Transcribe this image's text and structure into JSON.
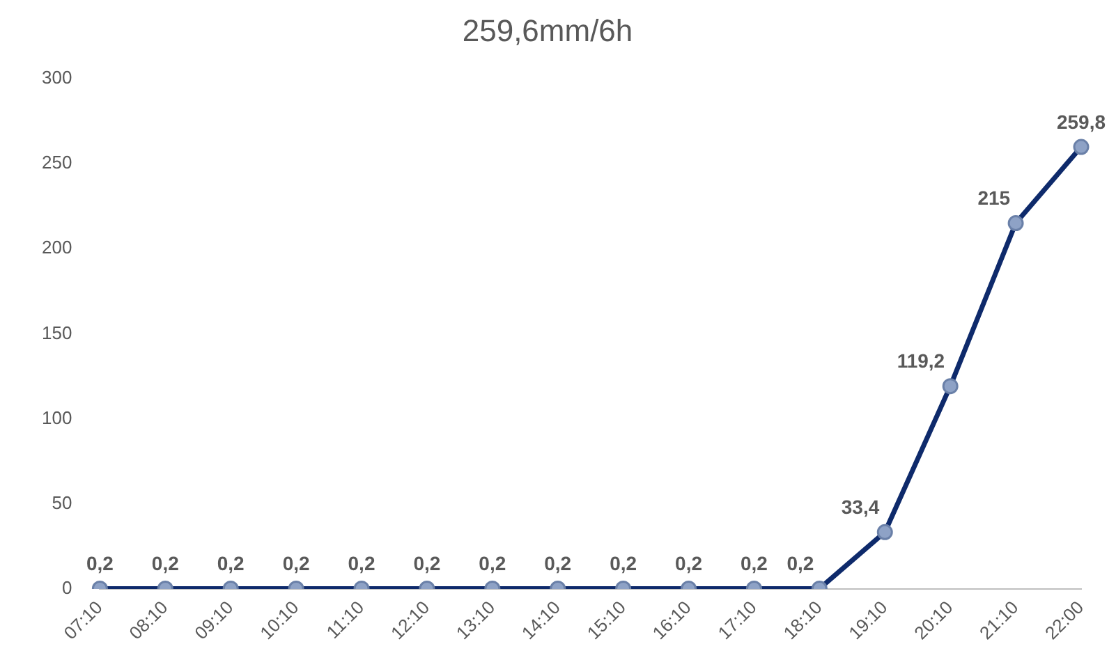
{
  "chart_data": {
    "type": "line",
    "title": "259,6mm/6h",
    "categories": [
      "07:10",
      "08:10",
      "09:10",
      "10:10",
      "11:10",
      "12:10",
      "13:10",
      "14:10",
      "15:10",
      "16:10",
      "17:10",
      "18:10",
      "19:10",
      "20:10",
      "21:10",
      "22:00"
    ],
    "series": [
      {
        "color": "#0e2a6b",
        "values": [
          0.2,
          0.2,
          0.2,
          0.2,
          0.2,
          0.2,
          0.2,
          0.2,
          0.2,
          0.2,
          0.2,
          0.2,
          33.4,
          119.2,
          215,
          259.8
        ],
        "value_labels": [
          "0,2",
          "0,2",
          "0,2",
          "0,2",
          "0,2",
          "0,2",
          "0,2",
          "0,2",
          "0,2",
          "0,2",
          "0,2",
          "0,2",
          "33,4",
          "119,2",
          "215",
          "259,8"
        ]
      }
    ],
    "ylim": [
      0,
      300
    ],
    "yticks": [
      0,
      50,
      100,
      150,
      200,
      250,
      300
    ],
    "grid": false,
    "legend": false,
    "marker": "circle",
    "line_style": "solid"
  }
}
